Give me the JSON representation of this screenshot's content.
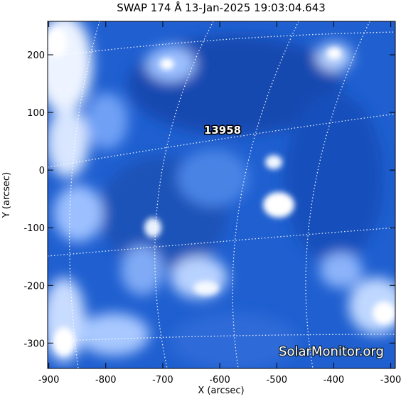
{
  "chart_data": {
    "type": "image",
    "title": "SWAP 174 Å 13-Jan-2025 19:03:04.643",
    "x_label": "X (arcsec)",
    "y_label": "Y (arcsec)",
    "xlim": [
      -902,
      -292
    ],
    "ylim": [
      -344,
      258
    ],
    "xticks": [
      -900,
      -800,
      -700,
      -600,
      -500,
      -400,
      -300
    ],
    "yticks": [
      -300,
      -200,
      -100,
      0,
      100,
      200
    ],
    "annotation": "13958",
    "watermark": "SolarMonitor.org"
  }
}
